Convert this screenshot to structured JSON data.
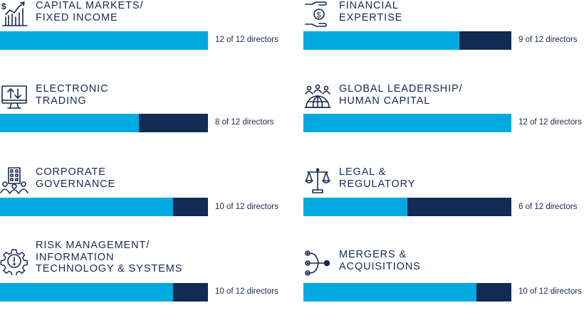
{
  "chart_data": {
    "type": "bar",
    "orientation": "horizontal",
    "stacked": true,
    "total_directors": 12,
    "colors": {
      "filled": "#00a9e0",
      "remaining": "#132b52",
      "text": "#162a4f"
    },
    "items": [
      {
        "lines": [
          "CAPITAL MARKETS/",
          "FIXED INCOME"
        ],
        "value": 12,
        "total": 12,
        "count_label": "12 of 12 directors",
        "icon": "chart-growth-icon"
      },
      {
        "lines": [
          "FINANCIAL",
          "EXPERTISE"
        ],
        "value": 9,
        "total": 12,
        "count_label": "9 of 12 directors",
        "icon": "hand-coin-icon"
      },
      {
        "lines": [
          "ELECTRONIC",
          "TRADING"
        ],
        "value": 8,
        "total": 12,
        "count_label": "8 of 12 directors",
        "icon": "monitor-arrows-icon"
      },
      {
        "lines": [
          "GLOBAL LEADERSHIP/",
          "HUMAN CAPITAL"
        ],
        "value": 12,
        "total": 12,
        "count_label": "12 of 12 directors",
        "icon": "globe-people-icon"
      },
      {
        "lines": [
          "CORPORATE",
          "GOVERNANCE"
        ],
        "value": 10,
        "total": 12,
        "count_label": "10 of 12 directors",
        "icon": "building-people-icon"
      },
      {
        "lines": [
          "LEGAL &",
          "REGULATORY"
        ],
        "value": 6,
        "total": 12,
        "count_label": "6 of 12 directors",
        "icon": "scales-icon"
      },
      {
        "lines": [
          "RISK MANAGEMENT/",
          "INFORMATION",
          "TECHNOLOGY & SYSTEMS"
        ],
        "value": 10,
        "total": 12,
        "count_label": "10 of 12 directors",
        "icon": "gear-alert-icon"
      },
      {
        "lines": [
          "MERGERS &",
          "ACQUISITIONS"
        ],
        "value": 10,
        "total": 12,
        "count_label": "10 of 12 directors",
        "icon": "merge-nodes-icon"
      }
    ]
  }
}
